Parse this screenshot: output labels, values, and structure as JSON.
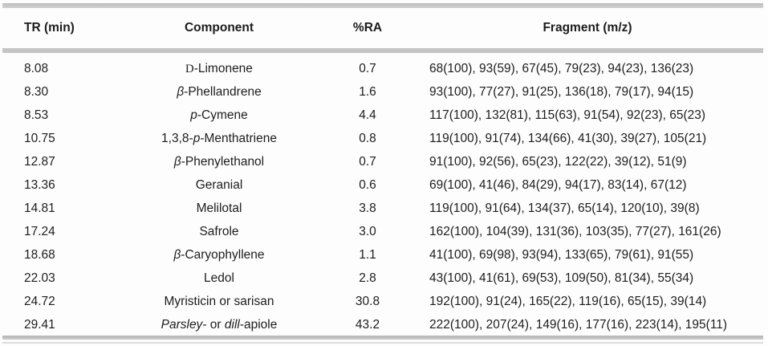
{
  "colors": {
    "rule_gray": "#c5c5c5",
    "text": "#1d1d1d",
    "background": "#fdfdfd"
  },
  "table": {
    "columns": [
      {
        "key": "tr",
        "label": "TR (min)"
      },
      {
        "key": "component",
        "label": "Component"
      },
      {
        "key": "ra",
        "label": "%RA"
      },
      {
        "key": "fragment",
        "label": "Fragment (m/z)"
      }
    ],
    "rows": [
      {
        "tr": "8.08",
        "component": [
          {
            "t": "D",
            "style": "smallcap-serif"
          },
          {
            "t": "-Limonene"
          }
        ],
        "ra": "0.7",
        "fragment": "68(100), 93(59), 67(45), 79(23), 94(23), 136(23)"
      },
      {
        "tr": "8.30",
        "component": [
          {
            "t": "β",
            "style": "italic"
          },
          {
            "t": "-Phellandrene"
          }
        ],
        "ra": "1.6",
        "fragment": "93(100), 77(27), 91(25), 136(18), 79(17), 94(15)"
      },
      {
        "tr": "8.53",
        "component": [
          {
            "t": "p",
            "style": "italic"
          },
          {
            "t": "-Cymene"
          }
        ],
        "ra": "4.4",
        "fragment": "117(100), 132(81), 115(63), 91(54), 92(23), 65(23)"
      },
      {
        "tr": "10.75",
        "component": [
          {
            "t": "1,3,8-"
          },
          {
            "t": "p",
            "style": "italic"
          },
          {
            "t": "-Menthatriene"
          }
        ],
        "ra": "0.8",
        "fragment": "119(100), 91(74), 134(66), 41(30), 39(27), 105(21)"
      },
      {
        "tr": "12.87",
        "component": [
          {
            "t": "β",
            "style": "italic"
          },
          {
            "t": "-Phenylethanol"
          }
        ],
        "ra": "0.7",
        "fragment": "91(100), 92(56), 65(23), 122(22), 39(12), 51(9)"
      },
      {
        "tr": "13.36",
        "component": [
          {
            "t": "Geranial"
          }
        ],
        "ra": "0.6",
        "fragment": "69(100), 41(46), 84(29), 94(17), 83(14), 67(12)"
      },
      {
        "tr": "14.81",
        "component": [
          {
            "t": "Melilotal"
          }
        ],
        "ra": "3.8",
        "fragment": "119(100), 91(64), 134(37), 65(14), 120(10), 39(8)"
      },
      {
        "tr": "17.24",
        "component": [
          {
            "t": "Safrole"
          }
        ],
        "ra": "3.0",
        "fragment": "162(100), 104(39), 131(36), 103(35), 77(27), 161(26)"
      },
      {
        "tr": "18.68",
        "component": [
          {
            "t": "β",
            "style": "italic"
          },
          {
            "t": "-Caryophyllene"
          }
        ],
        "ra": "1.1",
        "fragment": "41(100), 69(98), 93(94), 133(65), 79(61), 91(55)"
      },
      {
        "tr": "22.03",
        "component": [
          {
            "t": "Ledol"
          }
        ],
        "ra": "2.8",
        "fragment": "43(100), 41(61), 69(53), 109(50), 81(34), 55(34)"
      },
      {
        "tr": "24.72",
        "component": [
          {
            "t": "Myristicin or sarisan"
          }
        ],
        "ra": "30.8",
        "fragment": "192(100), 91(24), 165(22), 119(16), 65(15), 39(14)"
      },
      {
        "tr": "29.41",
        "component": [
          {
            "t": "Parsley",
            "style": "italic"
          },
          {
            "t": "- or "
          },
          {
            "t": "dill",
            "style": "italic"
          },
          {
            "t": "-apiole"
          }
        ],
        "ra": "43.2",
        "fragment": "222(100), 207(24), 149(16), 177(16), 223(14), 195(11)"
      }
    ]
  }
}
